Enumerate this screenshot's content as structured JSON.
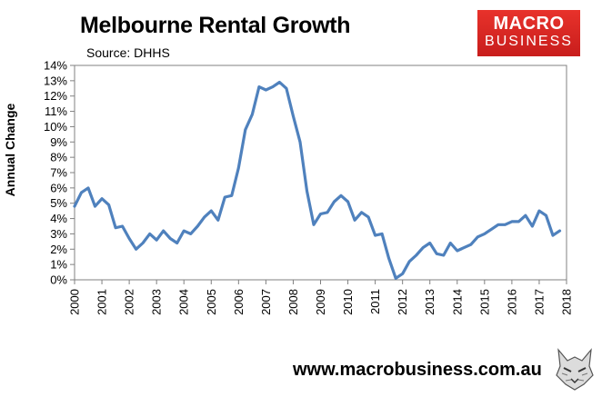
{
  "header": {
    "title": "Melbourne Rental Growth",
    "source": "Source: DHHS"
  },
  "logo": {
    "line1": "MACRO",
    "line2": "BUSINESS"
  },
  "footer": {
    "website": "www.macrobusiness.com.au"
  },
  "colors": {
    "line": "#4f81bd",
    "logo_red": "#d9262a",
    "axis": "#808080"
  },
  "icons": {
    "mascot": "wolf-icon"
  },
  "chart_data": {
    "type": "line",
    "title": "Melbourne Rental Growth",
    "subtitle": "Source: DHHS",
    "ylabel": "Annual Change",
    "xlabel": "",
    "xlim": [
      2000,
      2018
    ],
    "ylim": [
      0,
      14
    ],
    "y_ticks": [
      "0%",
      "1%",
      "2%",
      "3%",
      "4%",
      "5%",
      "6%",
      "7%",
      "8%",
      "9%",
      "10%",
      "11%",
      "12%",
      "13%",
      "14%"
    ],
    "x_ticks": [
      "2000",
      "2001",
      "2002",
      "2003",
      "2004",
      "2005",
      "2006",
      "2007",
      "2008",
      "2009",
      "2010",
      "2011",
      "2012",
      "2013",
      "2014",
      "2015",
      "2016",
      "2017",
      "2018"
    ],
    "grid": false,
    "legend": "none",
    "series": [
      {
        "x": [
          2000.0,
          2000.25,
          2000.5,
          2000.75,
          2001.0,
          2001.25,
          2001.5,
          2001.75,
          2002.0,
          2002.25,
          2002.5,
          2002.75,
          2003.0,
          2003.25,
          2003.5,
          2003.75,
          2004.0,
          2004.25,
          2004.5,
          2004.75,
          2005.0,
          2005.25,
          2005.5,
          2005.75,
          2006.0,
          2006.25,
          2006.5,
          2006.75,
          2007.0,
          2007.25,
          2007.5,
          2007.75,
          2008.0,
          2008.25,
          2008.5,
          2008.75,
          2009.0,
          2009.25,
          2009.5,
          2009.75,
          2010.0,
          2010.25,
          2010.5,
          2010.75,
          2011.0,
          2011.25,
          2011.5,
          2011.75,
          2012.0,
          2012.25,
          2012.5,
          2012.75,
          2013.0,
          2013.25,
          2013.5,
          2013.75,
          2014.0,
          2014.25,
          2014.5,
          2014.75,
          2015.0,
          2015.25,
          2015.5,
          2015.75,
          2016.0,
          2016.25,
          2016.5,
          2016.75,
          2017.0,
          2017.25,
          2017.5,
          2017.75
        ],
        "y": [
          4.8,
          5.7,
          6.0,
          4.8,
          5.3,
          4.9,
          3.4,
          3.5,
          2.7,
          2.0,
          2.4,
          3.0,
          2.6,
          3.2,
          2.7,
          2.4,
          3.2,
          3.0,
          3.5,
          4.1,
          4.5,
          3.9,
          5.4,
          5.5,
          7.3,
          9.8,
          10.8,
          12.6,
          12.4,
          12.6,
          12.9,
          12.5,
          10.7,
          9.0,
          5.8,
          3.6,
          4.3,
          4.4,
          5.1,
          5.5,
          5.1,
          3.9,
          4.4,
          4.1,
          2.9,
          3.0,
          1.4,
          0.1,
          0.4,
          1.2,
          1.6,
          2.1,
          2.4,
          1.7,
          1.6,
          2.4,
          1.9,
          2.1,
          2.3,
          2.8,
          3.0,
          3.3,
          3.6,
          3.6,
          3.8,
          3.8,
          4.2,
          3.5,
          4.5,
          4.2,
          2.9,
          3.2
        ]
      }
    ]
  }
}
